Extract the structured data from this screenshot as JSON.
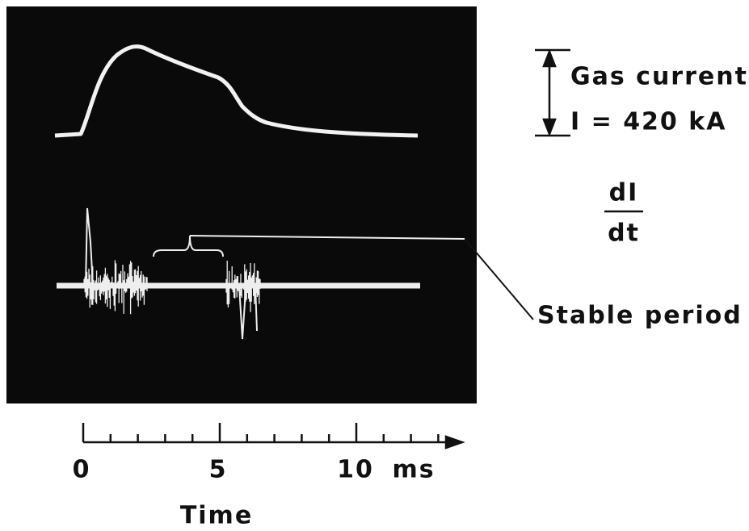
{
  "labels": {
    "gas_current": "Gas current",
    "current_value": "I = 420 kA",
    "derivative_numerator": "dI",
    "derivative_denominator": "dt",
    "stable_period": "Stable period"
  },
  "time_axis": {
    "ticks": [
      "0",
      "5",
      "10"
    ],
    "unit": "ms",
    "title": "Time"
  }
}
